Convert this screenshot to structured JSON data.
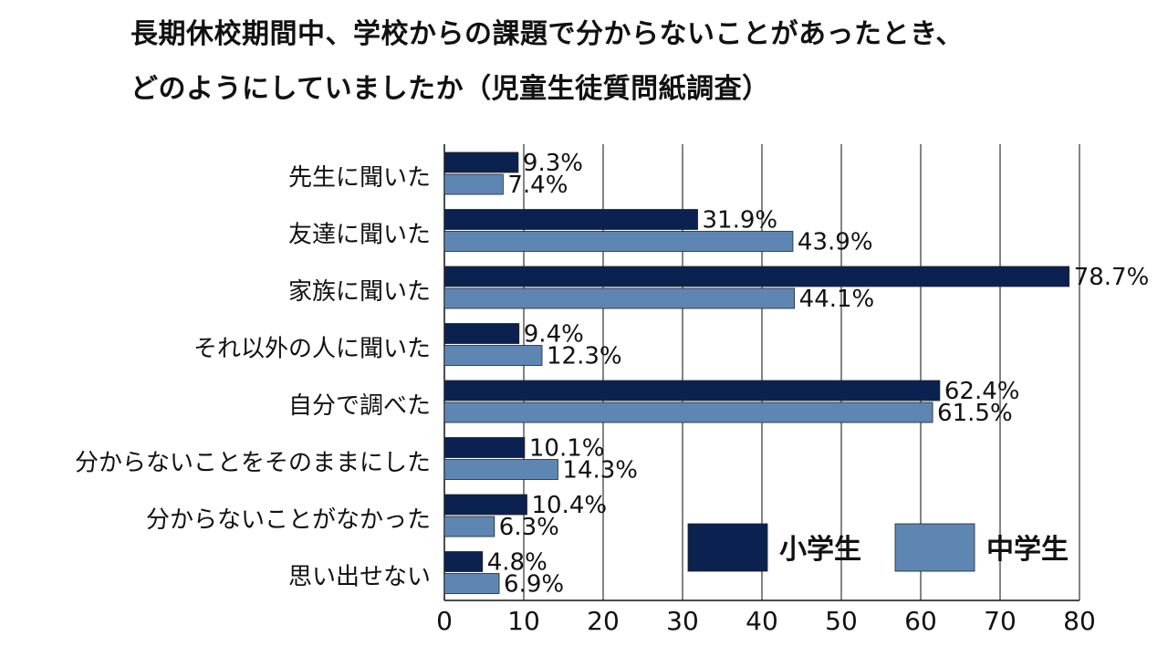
{
  "chart_data": {
    "type": "bar",
    "orientation": "horizontal",
    "title": [
      "長期休校期間中、学校からの課題で分からないことがあったとき、",
      "どのようにしていましたか（児童生徒質問紙調査）"
    ],
    "categories": [
      "先生に聞いた",
      "友達に聞いた",
      "家族に聞いた",
      "それ以外の人に聞いた",
      "自分で調べた",
      "分からないことをそのままにした",
      "分からないことがなかった",
      "思い出せない"
    ],
    "series": [
      {
        "name": "小学生",
        "color": "#0b2250",
        "values": [
          9.3,
          31.9,
          78.7,
          9.4,
          62.4,
          10.1,
          10.4,
          4.8
        ],
        "labels": [
          "9.3%",
          "31.9%",
          "78.7%",
          "9.4%",
          "62.4%",
          "10.1%",
          "10.4%",
          "4.8%"
        ]
      },
      {
        "name": "中学生",
        "color": "#5e86b3",
        "values": [
          7.4,
          43.9,
          44.1,
          12.3,
          61.5,
          14.3,
          6.3,
          6.9
        ],
        "labels": [
          "7.4%",
          "43.9%",
          "44.1%",
          "12.3%",
          "61.5%",
          "14.3%",
          "6.3%",
          "6.9%"
        ]
      }
    ],
    "xlim": [
      0,
      80
    ],
    "xticks": [
      0,
      10,
      20,
      30,
      40,
      50,
      60,
      70,
      80
    ],
    "grid": true,
    "legend_position": "bottom-right"
  }
}
